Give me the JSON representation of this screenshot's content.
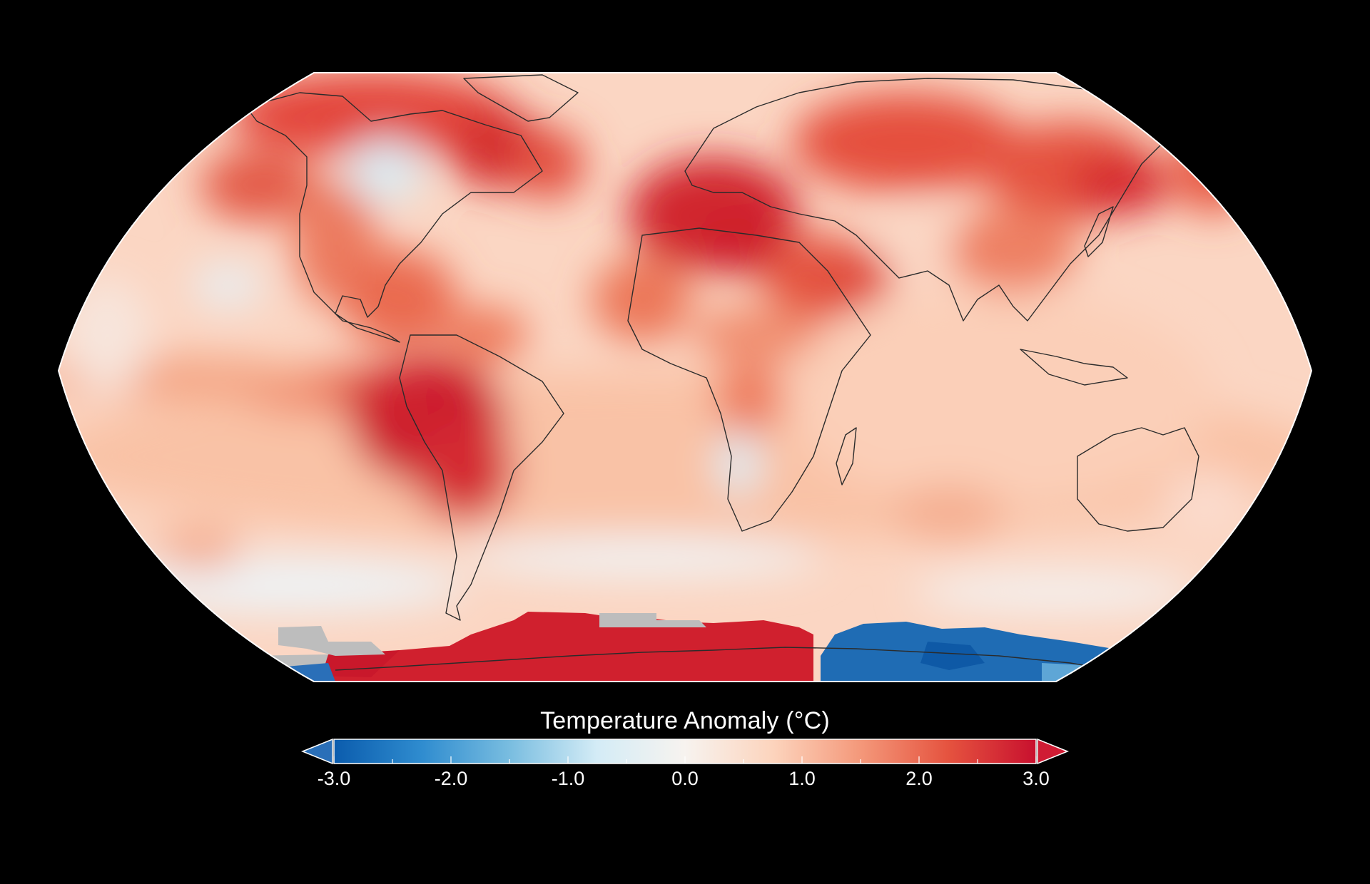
{
  "colorbar": {
    "title": "Temperature Anomaly (°C)",
    "min": -3.0,
    "max": 3.0,
    "tick_labels": [
      "-3.0",
      "-2.0",
      "-1.0",
      "0.0",
      "1.0",
      "2.0",
      "3.0"
    ],
    "colors": [
      "#0b5cad",
      "#2f8ccf",
      "#79bde0",
      "#d4ecf6",
      "#f7f3ef",
      "#fcd4bd",
      "#f4987a",
      "#e5533f",
      "#c8102e"
    ],
    "low_extension_color": "#2a6fb8",
    "high_extension_color": "#d01c34",
    "no_data_color": "#bdbdbd"
  },
  "map": {
    "projection": "Robinson",
    "background": "#000000",
    "coastline_color": "#2b2b2b"
  }
}
